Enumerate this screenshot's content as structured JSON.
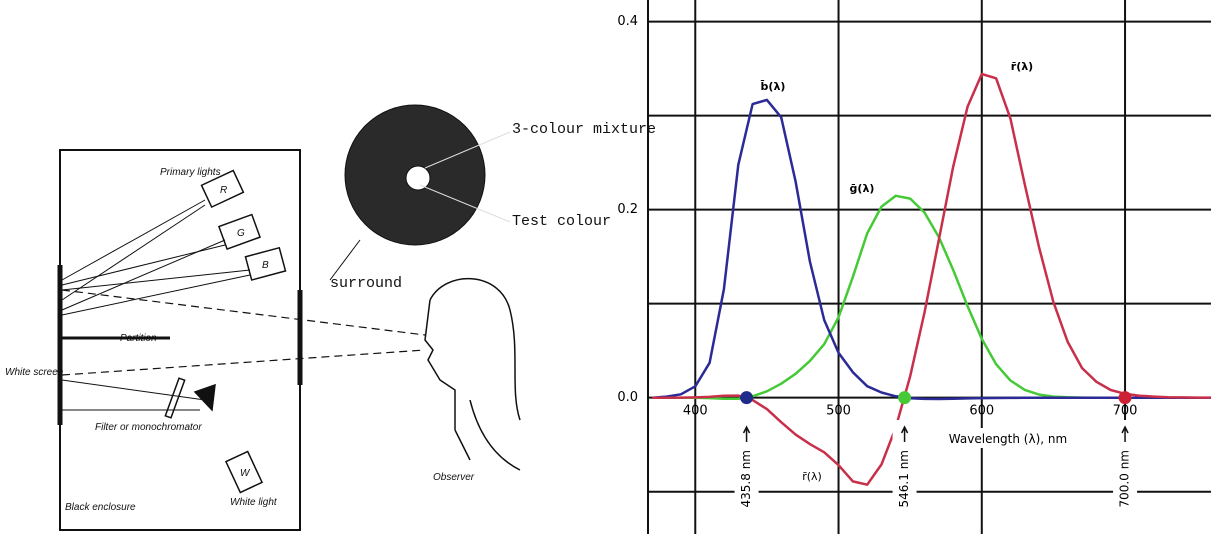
{
  "diagram": {
    "primary_lights": "Primary lights",
    "lamp_r": "R",
    "lamp_g": "G",
    "lamp_b": "B",
    "partition": "Partition",
    "white_screen": "White screen",
    "filter": "Filter or monochromator",
    "white_light": "White light",
    "lamp_w": "W",
    "enclosure": "Black enclosure",
    "observer": "Observer",
    "surround": "surround",
    "mixture": "3-colour mixture",
    "test": "Test colour"
  },
  "chart_data": {
    "type": "line",
    "x": [
      370,
      380,
      390,
      400,
      410,
      420,
      430,
      440,
      450,
      460,
      470,
      480,
      490,
      500,
      510,
      520,
      530,
      540,
      550,
      560,
      570,
      580,
      590,
      600,
      610,
      620,
      630,
      640,
      650,
      660,
      670,
      680,
      690,
      700,
      710,
      720,
      730,
      740,
      750,
      760
    ],
    "series": [
      {
        "name": "ḡ(λ)",
        "color": "#46c936",
        "values": [
          0,
          0,
          0,
          -0.0001,
          -0.0004,
          -0.0011,
          -0.0012,
          0.0015,
          0.0068,
          0.0149,
          0.0254,
          0.0391,
          0.0569,
          0.0854,
          0.1286,
          0.1747,
          0.2032,
          0.2147,
          0.2118,
          0.197,
          0.1709,
          0.1361,
          0.0975,
          0.0625,
          0.0356,
          0.0183,
          0.0083,
          0.0033,
          0.0012,
          0.0004,
          0.0001,
          0,
          0,
          0,
          0,
          0,
          0,
          0,
          0,
          0
        ]
      },
      {
        "name": "b̄(λ)",
        "color": "#2b2a96",
        "values": [
          0,
          0.0012,
          0.0036,
          0.0121,
          0.0371,
          0.1154,
          0.2477,
          0.3123,
          0.3167,
          0.2982,
          0.2299,
          0.1449,
          0.0826,
          0.0478,
          0.027,
          0.0122,
          0.0055,
          0.0015,
          -0.0006,
          -0.0013,
          -0.0014,
          -0.0011,
          -0.0008,
          -0.0005,
          -0.0003,
          -0.0002,
          -0.0001,
          0,
          0,
          0,
          0,
          0,
          0,
          0,
          0,
          0,
          0,
          0,
          0,
          0
        ]
      },
      {
        "name": "r̄(λ)",
        "color": "#c8304a",
        "values": [
          0,
          0,
          0.0001,
          0.0003,
          0.0008,
          0.0021,
          0.0022,
          -0.0026,
          -0.0121,
          -0.0261,
          -0.0393,
          -0.0494,
          -0.0581,
          -0.0717,
          -0.089,
          -0.0926,
          -0.071,
          -0.0315,
          0.0228,
          0.0906,
          0.1677,
          0.2453,
          0.3093,
          0.3443,
          0.3397,
          0.2971,
          0.2268,
          0.1597,
          0.1017,
          0.0593,
          0.0315,
          0.0169,
          0.0082,
          0.0041,
          0.0021,
          0.0011,
          0.0005,
          0.0003,
          0.0001,
          0.0001
        ]
      }
    ],
    "annotations": [
      "r̄(λ)"
    ],
    "x_label": "Wavelength (λ), nm",
    "primaries": [
      {
        "x": 435.8,
        "label": "435.8 nm",
        "color": "#1f2a8a"
      },
      {
        "x": 546.1,
        "label": "546.1 nm",
        "color": "#46c936"
      },
      {
        "x": 700.0,
        "label": "700.0 nm",
        "color": "#cc2233"
      }
    ],
    "xlim": [
      367,
      760
    ],
    "ylim": [
      -0.145,
      0.423
    ],
    "xticks": [
      400,
      500,
      600,
      700
    ],
    "yticks": [
      {
        "value": 0,
        "label": "0.0"
      },
      0.2,
      0.4
    ],
    "minor_yticks": [
      -0.1,
      0.1,
      0.3
    ],
    "grid": true
  }
}
